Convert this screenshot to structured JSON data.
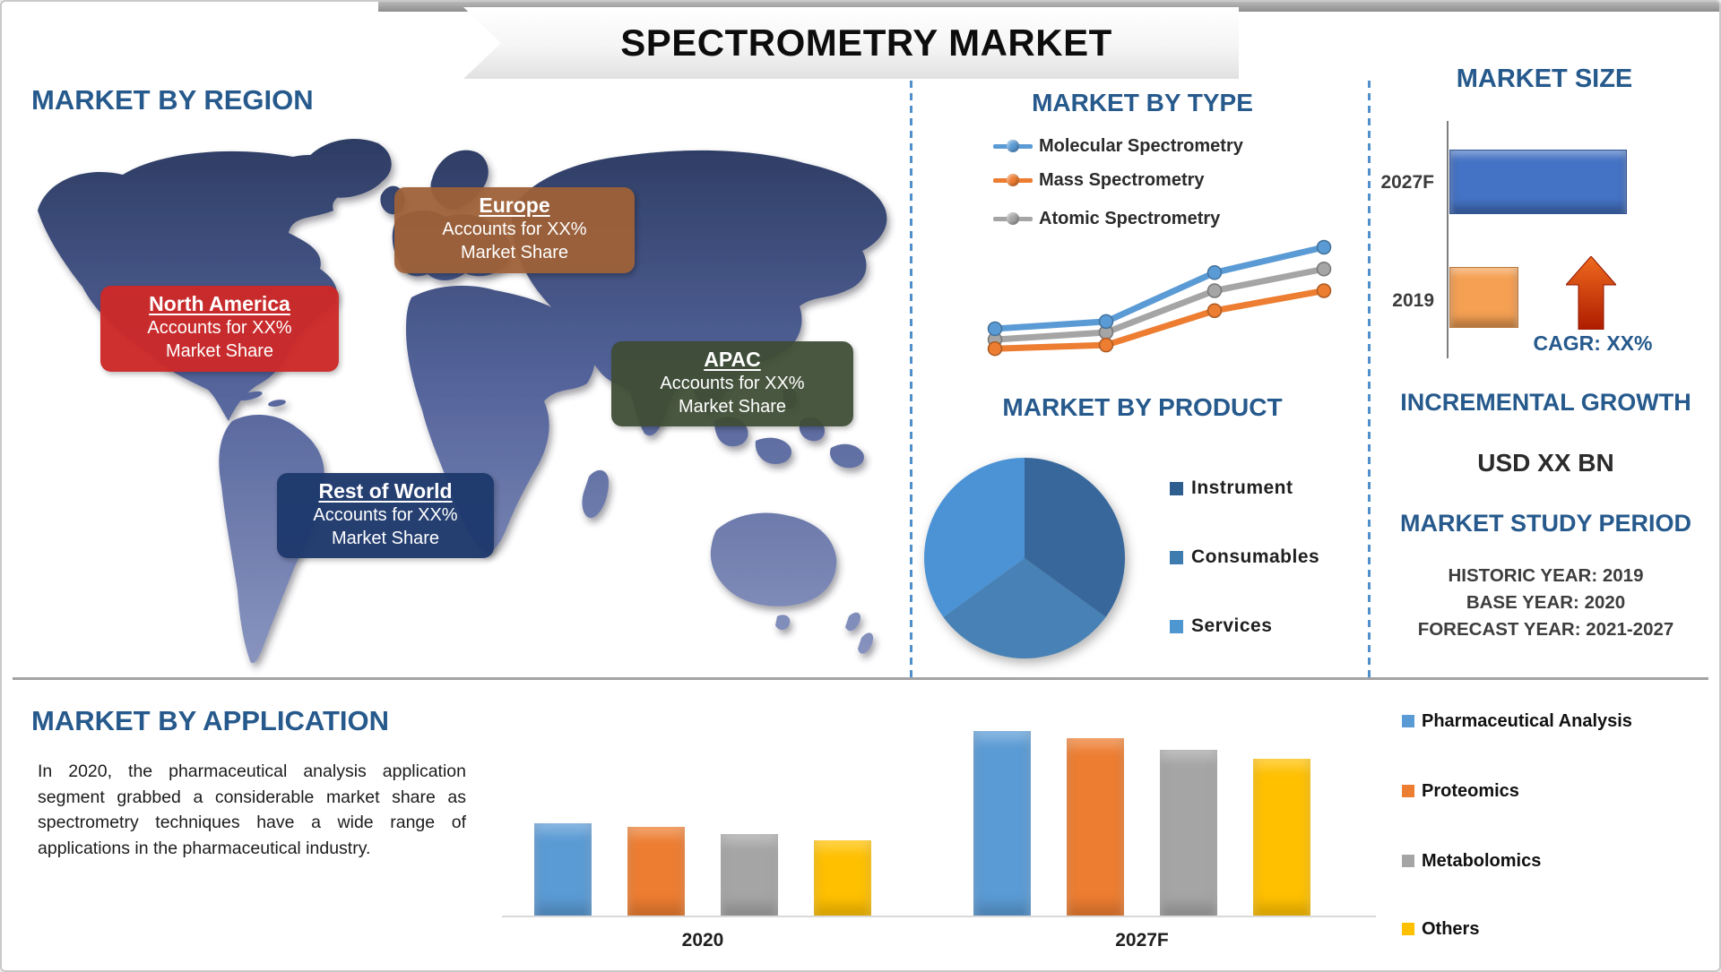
{
  "page": {
    "title": "SPECTROMETRY MARKET"
  },
  "region": {
    "heading": "MARKET BY REGION",
    "callouts": [
      {
        "name": "Europe",
        "line1": "Accounts for XX%",
        "line2": "Market Share",
        "color": "#9e6138"
      },
      {
        "name": "North America",
        "line1": "Accounts for XX%",
        "line2": "Market Share",
        "color": "#cc2929"
      },
      {
        "name": "APAC",
        "line1": "Accounts for XX%",
        "line2": "Market Share",
        "color": "#3f4d34"
      },
      {
        "name": "Rest of World",
        "line1": "Accounts for XX%",
        "line2": "Market Share",
        "color": "#1e396c"
      }
    ]
  },
  "market_by_type": {
    "heading": "MARKET BY TYPE"
  },
  "market_by_product": {
    "heading": "MARKET BY PRODUCT"
  },
  "market_size": {
    "heading": "MARKET SIZE",
    "cagr_label": "CAGR: XX%"
  },
  "incremental_growth": {
    "heading": "INCREMENTAL GROWTH",
    "value": "USD XX BN"
  },
  "market_study_period": {
    "heading": "MARKET STUDY PERIOD",
    "rows": [
      "HISTORIC YEAR: 2019",
      "BASE YEAR: 2020",
      "FORECAST YEAR: 2021-2027"
    ]
  },
  "application": {
    "heading": "MARKET BY APPLICATION",
    "paragraph": "In 2020, the pharmaceutical analysis application segment grabbed a considerable market share as spectrometry techniques have a wide range of applications in the pharmaceutical industry."
  },
  "chart_data": [
    {
      "id": "market_by_type",
      "type": "line",
      "x": [
        1,
        2,
        3,
        4
      ],
      "x_note": "time axis unlabeled in source",
      "series": [
        {
          "name": "Molecular Spectrometry",
          "color": "#5b9bd5",
          "values": [
            33,
            37,
            64,
            78
          ]
        },
        {
          "name": "Mass Spectrometry",
          "color": "#ed7d31",
          "values": [
            22,
            24,
            43,
            54
          ]
        },
        {
          "name": "Atomic Spectrometry",
          "color": "#a5a5a5",
          "values": [
            27,
            31,
            54,
            66
          ]
        }
      ],
      "ylim": [
        0,
        100
      ],
      "units": "relative (values shown as XX in source)",
      "grid": false,
      "legend_position": "top-left"
    },
    {
      "id": "market_by_product",
      "type": "pie",
      "labels": [
        "Instrument",
        "Consumables",
        "Services"
      ],
      "values": [
        35,
        30,
        35
      ],
      "colors": [
        "#38689b",
        "#4781b5",
        "#4c93d6"
      ],
      "legend_colors": [
        "#2d5e8d",
        "#3e7cb0",
        "#4e97d1"
      ],
      "start_angle": "12 o'clock",
      "direction": "clockwise",
      "units": "percent (estimated; shares shown as XX)"
    },
    {
      "id": "market_size",
      "type": "bar",
      "orientation": "horizontal",
      "categories": [
        "2027F",
        "2019"
      ],
      "values": [
        100,
        39
      ],
      "colors": [
        "#4472c4",
        "#f5a053"
      ],
      "units": "relative (USD BN values not labeled)"
    },
    {
      "id": "market_by_application",
      "type": "bar",
      "categories": [
        "2020",
        "2027F"
      ],
      "series": [
        {
          "name": "Pharmaceutical Analysis",
          "color": "#5b9bd5",
          "values": [
            50,
            100
          ]
        },
        {
          "name": "Proteomics",
          "color": "#ed7d31",
          "values": [
            48,
            96
          ]
        },
        {
          "name": "Metabolomics",
          "color": "#a5a5a5",
          "values": [
            44,
            90
          ]
        },
        {
          "name": "Others",
          "color": "#ffc000",
          "values": [
            41,
            85
          ]
        }
      ],
      "units": "relative (values unlabeled)",
      "legend_position": "right",
      "grid": false
    }
  ]
}
